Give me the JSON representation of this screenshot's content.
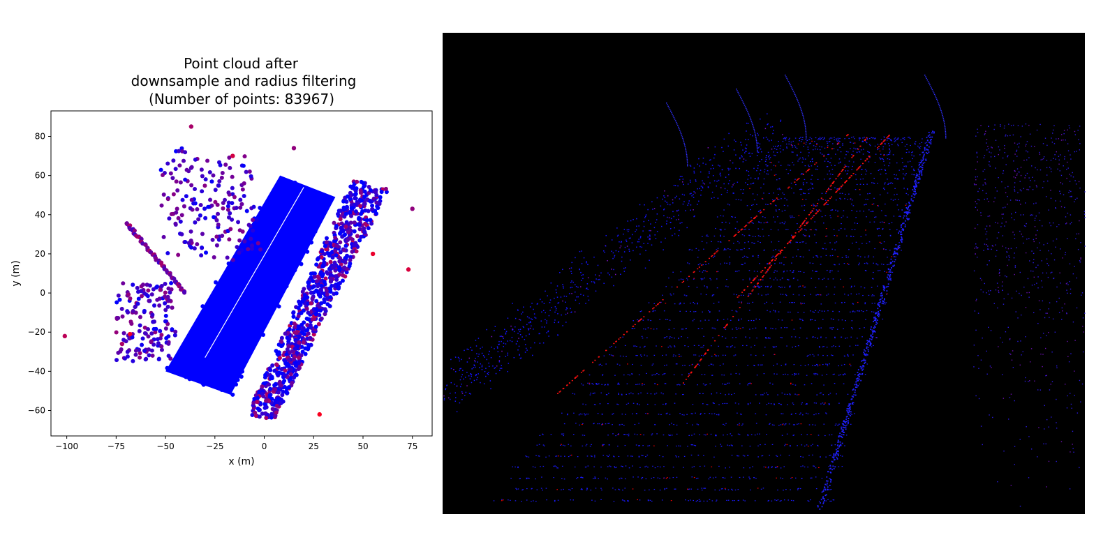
{
  "chart_data": [
    {
      "type": "scatter",
      "title_lines": [
        "Point cloud after",
        "downsample and radius filtering",
        "(Number of points: 83967)"
      ],
      "xlabel": "x (m)",
      "ylabel": "y (m)",
      "xlim": [
        -108,
        85
      ],
      "ylim": [
        -73,
        93
      ],
      "xticks": [
        -100,
        -75,
        -50,
        -25,
        0,
        25,
        50,
        75
      ],
      "yticks": [
        -60,
        -40,
        -20,
        0,
        20,
        40,
        60,
        80
      ],
      "colors": {
        "low": "#0000ff",
        "high": "#ff0000",
        "mid": "#5a12c8"
      },
      "clusters": {
        "road_band": {
          "corners": [
            [
              -50,
              -40
            ],
            [
              -17,
              -52
            ],
            [
              36,
              49
            ],
            [
              8,
              60
            ]
          ],
          "color": "#0000ff"
        },
        "right_band": {
          "corners": [
            [
              -9,
              -63
            ],
            [
              5,
              -65
            ],
            [
              63,
              53
            ],
            [
              45,
              58
            ]
          ]
        },
        "diagonal_line": {
          "from": [
            -70,
            36
          ],
          "to": [
            -40,
            0
          ]
        },
        "isolated": [
          [
            -101,
            -22
          ],
          [
            -72,
            -26
          ],
          [
            -68,
            -21
          ],
          [
            -37,
            85
          ],
          [
            -16,
            70
          ],
          [
            15,
            74
          ],
          [
            28,
            -62
          ],
          [
            73,
            12
          ],
          [
            75,
            43
          ],
          [
            55,
            20
          ]
        ]
      }
    },
    {
      "type": "scatter",
      "title_lines": [],
      "view": "3d-perspective",
      "background": "#000000",
      "colors": {
        "low": "#0000ff",
        "high": "#ff0000"
      }
    }
  ]
}
